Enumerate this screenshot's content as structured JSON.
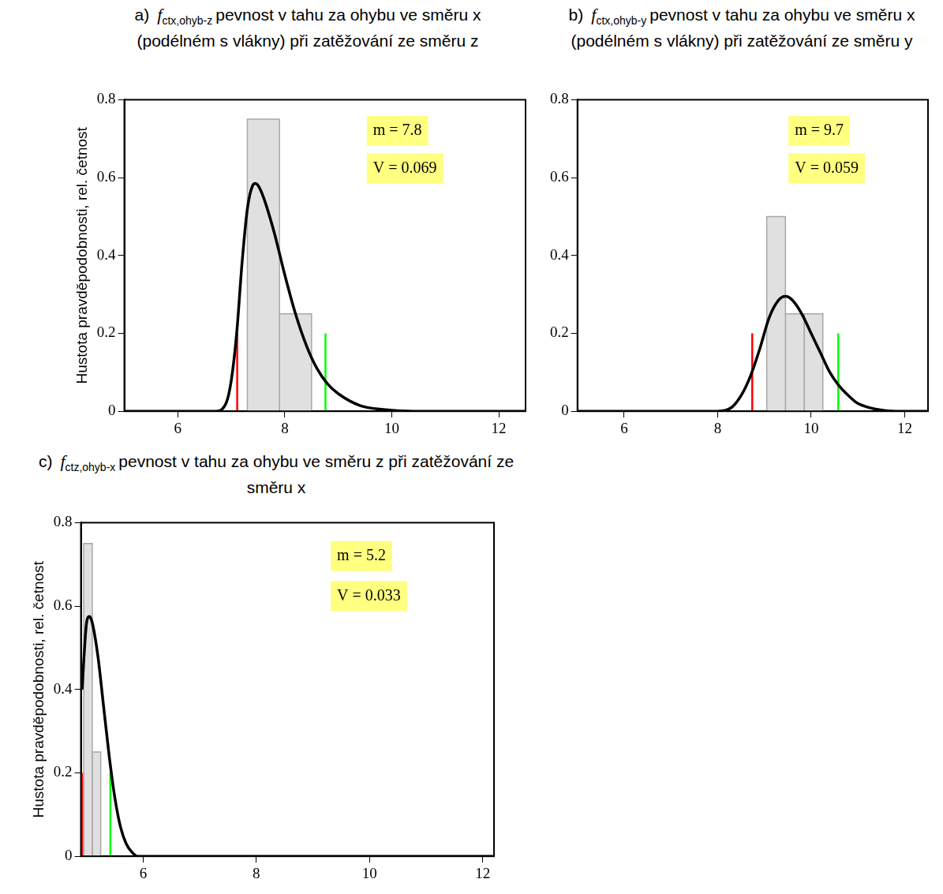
{
  "chart_data": [
    {
      "type": "histogram",
      "label": "a)",
      "symbol": "f",
      "subscript": "ctx,ohyb-z",
      "title": "pevnost v tahu za ohybu ve směru x (podélném s vlákny) při zatěžování ze směru z",
      "ylabel": "Hustota pravděpodobnosti, rel. četnost",
      "bins": [
        7.3,
        7.9,
        8.5
      ],
      "counts": [
        0.75,
        0.25
      ],
      "color": "#e0e0e0",
      "series": [
        {
          "type": "line",
          "color": "#000000",
          "x": [
            5,
            6.7,
            6.9,
            7.0,
            7.1,
            7.2,
            7.3,
            7.4,
            7.45,
            7.5,
            7.6,
            7.8,
            8.0,
            8.2,
            8.4,
            8.6,
            8.8,
            9.0,
            9.4,
            9.8,
            10.4,
            12.5
          ],
          "values": [
            0,
            0,
            0.02,
            0.08,
            0.2,
            0.38,
            0.52,
            0.58,
            0.585,
            0.58,
            0.55,
            0.46,
            0.35,
            0.25,
            0.17,
            0.11,
            0.07,
            0.045,
            0.015,
            0.005,
            0,
            0
          ]
        }
      ],
      "vlines": [
        {
          "x": 7.11,
          "y": 0.2,
          "color": "#ff0000"
        },
        {
          "x": 8.76,
          "y": 0.2,
          "color": "#00ff00"
        }
      ],
      "annotations": [
        "m = 7.8",
        "V = 0.069"
      ],
      "xlim": [
        5,
        12.5
      ],
      "xticks": [
        6,
        8,
        10,
        12
      ],
      "ylim": [
        0,
        0.8
      ],
      "yticks": [
        0,
        0.2,
        0.4,
        0.6,
        0.8
      ],
      "grid": false
    },
    {
      "type": "histogram",
      "label": "b)",
      "symbol": "f",
      "subscript": "ctx,ohyb-y",
      "title": "pevnost v tahu za ohybu ve směru x (podélném s vlákny) při zatěžování ze směru y",
      "bins": [
        9.05,
        9.45,
        9.85,
        10.25
      ],
      "counts": [
        0.5,
        0.25,
        0.25
      ],
      "color": "#e0e0e0",
      "series": [
        {
          "type": "line",
          "color": "#000000",
          "x": [
            5,
            8.0,
            8.3,
            8.5,
            8.7,
            8.9,
            9.1,
            9.3,
            9.45,
            9.6,
            9.8,
            10.0,
            10.2,
            10.4,
            10.6,
            10.8,
            11.0,
            11.4,
            11.8,
            12.5
          ],
          "values": [
            0,
            0,
            0.01,
            0.04,
            0.09,
            0.16,
            0.24,
            0.285,
            0.295,
            0.285,
            0.25,
            0.2,
            0.15,
            0.1,
            0.065,
            0.04,
            0.02,
            0.005,
            0,
            0
          ]
        }
      ],
      "vlines": [
        {
          "x": 8.74,
          "y": 0.2,
          "color": "#ff0000"
        },
        {
          "x": 10.58,
          "y": 0.2,
          "color": "#00ff00"
        }
      ],
      "annotations": [
        "m = 9.7",
        "V = 0.059"
      ],
      "xlim": [
        5,
        12.5
      ],
      "xticks": [
        6,
        8,
        10,
        12
      ],
      "ylim": [
        0,
        0.8
      ],
      "yticks": [
        0,
        0.2,
        0.4,
        0.6,
        0.8
      ],
      "grid": false
    },
    {
      "type": "histogram",
      "label": "c)",
      "symbol": "f",
      "subscript": "ctz,ohyb-x",
      "title": "pevnost v tahu za ohybu ve směru z při zatěžování ze směru x",
      "ylabel": "Hustota pravděpodobnosti, rel. četnost",
      "bins": [
        4.95,
        5.1,
        5.25
      ],
      "counts": [
        0.75,
        0.25
      ],
      "color": "#e0e0e0",
      "series": [
        {
          "type": "line",
          "color": "#000000",
          "x": [
            4.92,
            5.0,
            5.05,
            5.1,
            5.2,
            5.3,
            5.4,
            5.5,
            5.6,
            5.7,
            5.8,
            5.9,
            12.2
          ],
          "values": [
            0.4,
            0.56,
            0.575,
            0.56,
            0.48,
            0.36,
            0.24,
            0.14,
            0.07,
            0.03,
            0.01,
            0,
            0
          ]
        }
      ],
      "vlines": [
        {
          "x": 4.92,
          "y": 0.2,
          "color": "#ff0000"
        },
        {
          "x": 5.42,
          "y": 0.2,
          "color": "#00ff00"
        }
      ],
      "annotations": [
        "m = 5.2",
        "V = 0.033"
      ],
      "xlim": [
        4.9,
        12.2
      ],
      "xticks": [
        6,
        8,
        10,
        12
      ],
      "ylim": [
        0,
        0.8
      ],
      "yticks": [
        0,
        0.2,
        0.4,
        0.6,
        0.8
      ],
      "grid": false
    }
  ]
}
